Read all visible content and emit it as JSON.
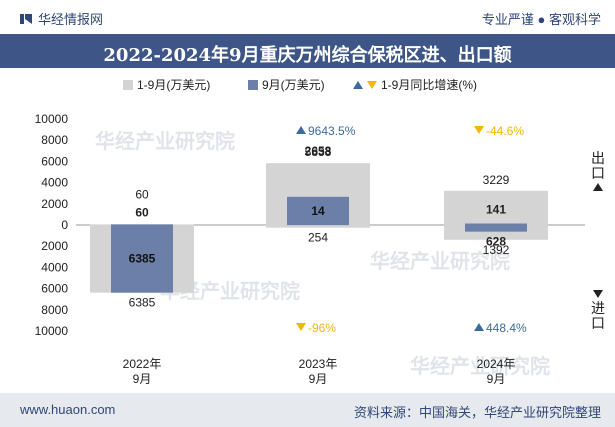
{
  "header": {
    "brand": "华经情报网",
    "tagline": "专业严谨 ● 客观科学"
  },
  "title": "2022-2024年9月重庆万州综合保税区进、出口额",
  "legend": {
    "cumulative": "1-9月(万美元)",
    "monthly": "9月(万美元)",
    "growth": "1-9月同比增速(%)"
  },
  "side_labels": {
    "export": "出口",
    "import": "进口"
  },
  "watermark": {
    "cn": "华经产业研究院",
    "url": "www.huaon.com"
  },
  "footer": {
    "site": "www.huaon.com",
    "source": "资料来源：中国海关，华经产业研究院整理"
  },
  "colors": {
    "cumulative": "#d4d4d4",
    "monthly": "#6b7fa8",
    "up": "#3d6a9c",
    "down": "#f2b705",
    "header": "#3d5687"
  },
  "chart_data": {
    "type": "bar",
    "categories": [
      "2022年\n9月",
      "2023年\n9月",
      "2024年\n9月"
    ],
    "yticks": [
      "10000",
      "8000",
      "6000",
      "4000",
      "2000",
      "0",
      "2000",
      "4000",
      "6000",
      "8000",
      "10000"
    ],
    "ylim": [
      -10000,
      10000
    ],
    "series": [
      {
        "name": "1-9月(万美元) 出口",
        "values": [
          60,
          5833,
          3229
        ]
      },
      {
        "name": "1-9月(万美元) 进口",
        "values": [
          6385,
          254,
          1392
        ]
      },
      {
        "name": "9月(万美元) 出口",
        "values": [
          60,
          2658,
          141
        ]
      },
      {
        "name": "9月(万美元) 进口",
        "values": [
          6385,
          14,
          628
        ]
      }
    ],
    "growth": {
      "export": [
        null,
        "9643.5%",
        "-44.6%"
      ],
      "import": [
        null,
        "-96%",
        "448.4%"
      ]
    }
  }
}
